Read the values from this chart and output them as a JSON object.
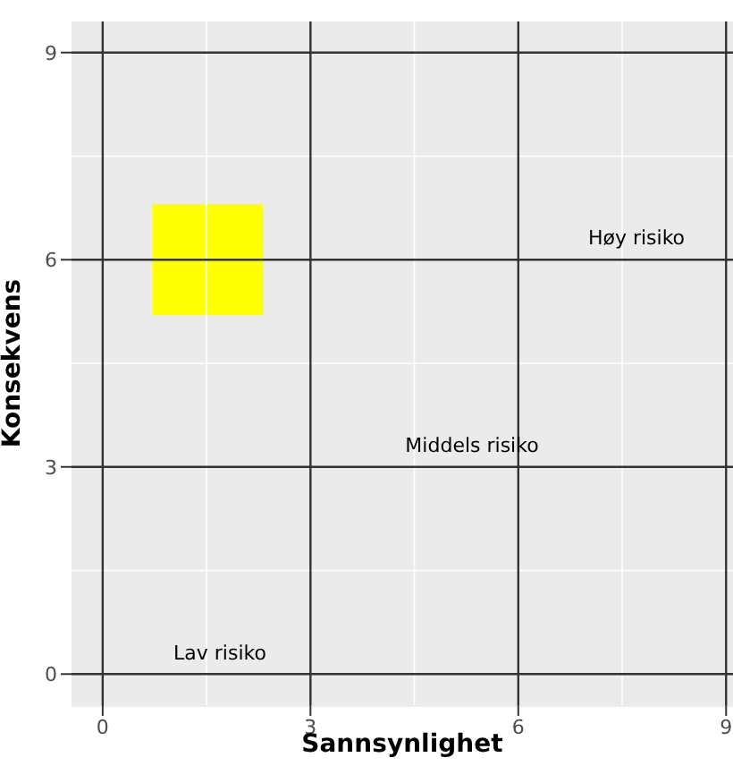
{
  "chart_data": {
    "type": "bar",
    "xlabel": "Sannsynlighet",
    "ylabel": "Konsekvens",
    "x": [
      1.52
    ],
    "series": [
      {
        "color": "#ffff00",
        "base": [
          5.2
        ],
        "values": [
          1.6
        ]
      }
    ],
    "xlim": [
      -0.45,
      9.1
    ],
    "ylim": [
      -0.45,
      9.45
    ],
    "xticks": [
      0,
      3,
      6,
      9
    ],
    "yticks": [
      0,
      3,
      6,
      9
    ],
    "grid": true,
    "legend": false,
    "annotations": [
      "Lav risiko",
      "Middels risiko",
      "Høy risiko"
    ]
  }
}
